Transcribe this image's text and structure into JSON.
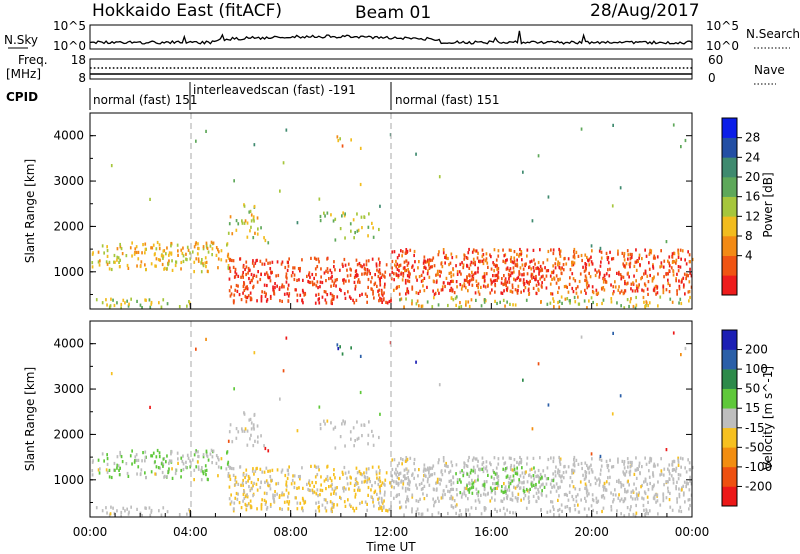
{
  "header": {
    "radar": "Hokkaido East (fitACF)",
    "beam": "Beam 01",
    "date": "28/Aug/2017"
  },
  "top_panels": {
    "nsky_label": "N.Sky",
    "nsky_ticks": [
      "10^5",
      "10^0"
    ],
    "nsearch_label": "N.Search",
    "nsearch_ticks": [
      "10^5",
      "10^0"
    ],
    "freq_label": "Freq.",
    "freq_unit": "[MHz]",
    "freq_ticks": [
      "18",
      "8"
    ],
    "nave_label": "Nave",
    "nave_ticks": [
      "60",
      "0"
    ],
    "cpid_label": "CPID",
    "cpid_segments": [
      {
        "label": "normal (fast) 151",
        "start_h": 0,
        "end_h": 4
      },
      {
        "label": "interleavedscan (fast) -191",
        "start_h": 4,
        "end_h": 12
      },
      {
        "label": "normal (fast) 151",
        "start_h": 12,
        "end_h": 24
      }
    ]
  },
  "chart_data": [
    {
      "type": "heatmap",
      "title": "Power",
      "ylabel": "Slant Range [km]",
      "xlabel": "",
      "x_range_hours": [
        0,
        24
      ],
      "ylim": [
        180,
        4500
      ],
      "yticks": [
        "1000",
        "2000",
        "3000",
        "4000"
      ],
      "colorbar_label": "Power [dB]",
      "colorbar_ticks": [
        "28",
        "24",
        "20",
        "16",
        "12",
        "8",
        "4"
      ],
      "colorbar_colors": [
        "#0b1ee8",
        "#234fa4",
        "#3f8a6f",
        "#5ea85a",
        "#a6c63c",
        "#f2bc1e",
        "#f38a14",
        "#f05412",
        "#ee1c1c"
      ]
    },
    {
      "type": "heatmap",
      "title": "Velocity",
      "ylabel": "Slant Range [km]",
      "xlabel": "Time UT",
      "x_range_hours": [
        0,
        24
      ],
      "ylim": [
        180,
        4500
      ],
      "yticks": [
        "1000",
        "2000",
        "3000",
        "4000"
      ],
      "xticks": [
        "00:00",
        "04:00",
        "08:00",
        "12:00",
        "16:00",
        "20:00",
        "00:00"
      ],
      "colorbar_label": "Velocity [m s^-1]",
      "colorbar_ticks": [
        "200",
        "100",
        "50",
        "15",
        "-15",
        "-50",
        "-100",
        "-200"
      ],
      "colorbar_colors": [
        "#1c1fb4",
        "#2b5fa8",
        "#2d8a4a",
        "#5fc83a",
        "#bebebe",
        "#f6c020",
        "#f28d10",
        "#ee5010",
        "#ec1818"
      ]
    }
  ]
}
